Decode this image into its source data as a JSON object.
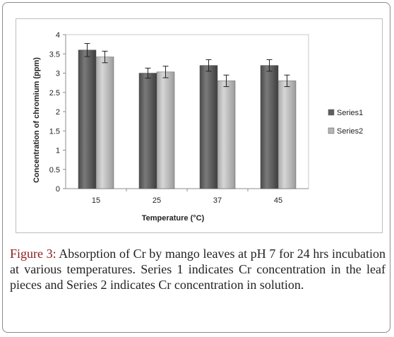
{
  "caption": {
    "label": "Figure 3:",
    "text": " Absorption of Cr by mango leaves at pH 7 for 24 hrs incubation at various temperatures. Series 1 indicates Cr concentration in the leaf pieces and Series 2 indicates Cr concentration in solution."
  },
  "chart_data": {
    "type": "bar",
    "title": "",
    "xlabel": "Temperature (°C)",
    "ylabel": "Concentration of chromium (ppm)",
    "categories": [
      "15",
      "25",
      "37",
      "45"
    ],
    "ylim": [
      0,
      4
    ],
    "yticks": [
      0,
      0.5,
      1,
      1.5,
      2,
      2.5,
      3,
      3.5,
      4
    ],
    "ytick_labels": [
      "0",
      "0.5",
      "1",
      "1.5",
      "2",
      "2.5",
      "3",
      "3.5",
      "4"
    ],
    "grid": false,
    "legend_position": "right",
    "series": [
      {
        "name": "Series1",
        "values": [
          3.6,
          3.0,
          3.2,
          3.2
        ],
        "error": [
          0.17,
          0.13,
          0.15,
          0.15
        ],
        "color": "#5f5f5f"
      },
      {
        "name": "Series2",
        "values": [
          3.42,
          3.03,
          2.8,
          2.8
        ],
        "error": [
          0.15,
          0.15,
          0.15,
          0.15
        ],
        "color": "#b5b5b5"
      }
    ]
  }
}
